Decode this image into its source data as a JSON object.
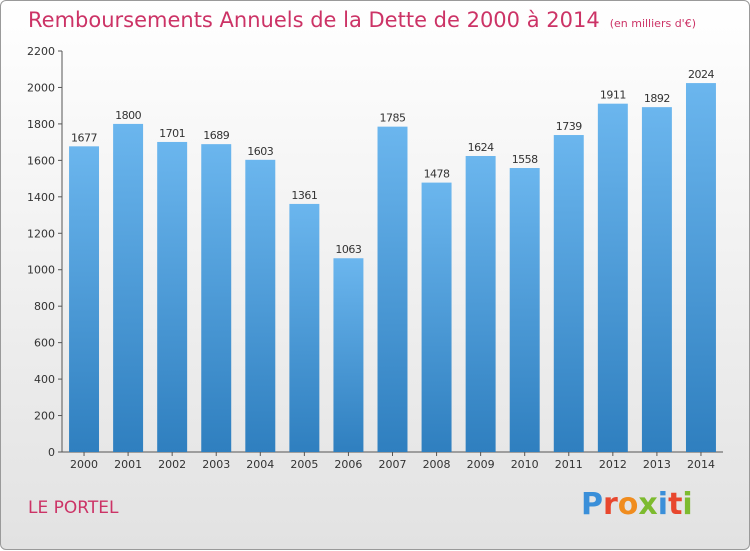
{
  "header": {
    "title": "Remboursements Annuels de la Dette de 2000 à 2014",
    "unit": "(en milliers d'€)"
  },
  "footer": {
    "place": "LE PORTEL",
    "logo": "Proxiti"
  },
  "colors": {
    "title": "#cc3366",
    "bar_top": "#6bb6ee",
    "bar_bottom": "#2f7fbf",
    "logo_letters": [
      "#3a8fd9",
      "#e8472e",
      "#f08c1e",
      "#7dbb2f",
      "#3a8fd9",
      "#e8472e",
      "#7dbb2f"
    ]
  },
  "chart_data": {
    "type": "bar",
    "title": "Remboursements Annuels de la Dette de 2000 à 2014",
    "xlabel": "",
    "ylabel": "",
    "categories": [
      "2000",
      "2001",
      "2002",
      "2003",
      "2004",
      "2005",
      "2006",
      "2007",
      "2008",
      "2009",
      "2010",
      "2011",
      "2012",
      "2013",
      "2014"
    ],
    "values": [
      1677,
      1800,
      1701,
      1689,
      1603,
      1361,
      1063,
      1785,
      1478,
      1624,
      1558,
      1739,
      1911,
      1892,
      2024
    ],
    "ylim": [
      0,
      2200
    ],
    "yticks": [
      0,
      200,
      400,
      600,
      800,
      1000,
      1200,
      1400,
      1600,
      1800,
      2000,
      2200
    ],
    "grid": false,
    "data_labels": true
  }
}
